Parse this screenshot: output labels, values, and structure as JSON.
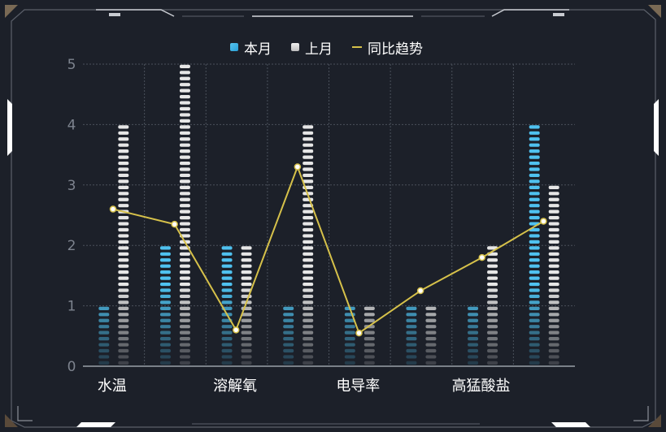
{
  "legend": {
    "current_label": "本月",
    "previous_label": "上月",
    "trend_label": "同比趋势"
  },
  "colors": {
    "background": "#1c2029",
    "current": "#4fc1ef",
    "previous": "#e6e6e6",
    "trend": "#d6c14a",
    "grid": "#4a505b",
    "axis_text": "#7d838e",
    "category_text": "#ffffff",
    "frame": "#8c9099"
  },
  "chart_data": {
    "type": "bar",
    "categories": [
      "水温",
      "",
      "溶解氧",
      "",
      "电导率",
      "",
      "高猛酸盐",
      ""
    ],
    "ylim": [
      0,
      5
    ],
    "yticks": [
      0,
      1,
      2,
      3,
      4,
      5
    ],
    "grid": true,
    "legend_position": "top-center",
    "series": [
      {
        "name": "本月",
        "type": "bar",
        "values": [
          1,
          2,
          2,
          1,
          1,
          1,
          1,
          4
        ]
      },
      {
        "name": "上月",
        "type": "bar",
        "values": [
          4,
          5,
          2,
          4,
          1,
          1,
          2,
          3
        ]
      },
      {
        "name": "同比趋势",
        "type": "line",
        "values": [
          2.6,
          2.35,
          0.6,
          3.3,
          0.55,
          1.25,
          1.8,
          2.4
        ]
      }
    ]
  }
}
